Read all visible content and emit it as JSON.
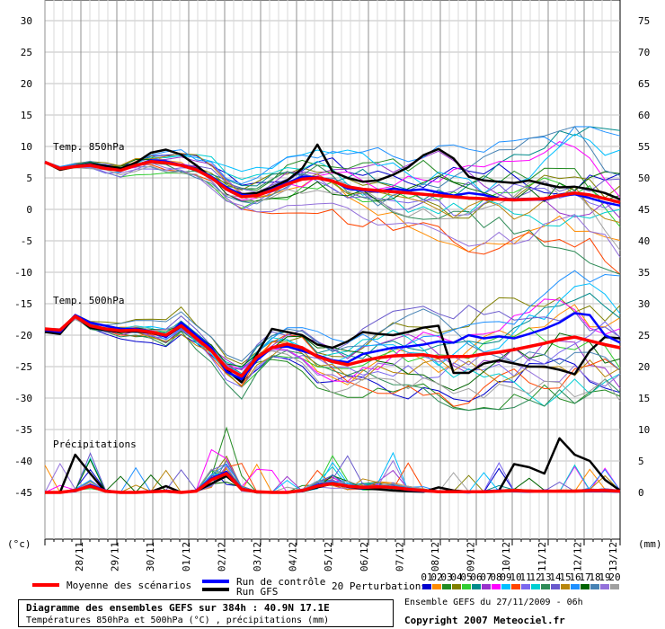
{
  "chart_data": {
    "type": "line",
    "left_axis_ticks": [
      "30",
      "25",
      "20",
      "15",
      "10",
      "5",
      "0",
      "-5",
      "-10",
      "-15",
      "-20",
      "-25",
      "-30",
      "-35",
      "-40",
      "-45"
    ],
    "right_axis_ticks": [
      "75",
      "70",
      "65",
      "60",
      "55",
      "50",
      "45",
      "40",
      "35",
      "30",
      "25",
      "20",
      "15",
      "10",
      "5",
      "0"
    ],
    "left_unit": "(°c)",
    "right_unit": "(mm)",
    "x_labels": [
      "28/11",
      "29/11",
      "30/11",
      "01/12",
      "02/12",
      "03/12",
      "04/12",
      "05/12",
      "06/12",
      "07/12",
      "08/12",
      "09/12",
      "10/12",
      "11/12",
      "12/12",
      "13/12"
    ],
    "panels": [
      {
        "label": "Temp. 850hPa",
        "mean": [
          7.5,
          6.5,
          6.8,
          7.0,
          6.5,
          6.2,
          7.0,
          7.6,
          7.4,
          7.0,
          6.3,
          5.0,
          3.2,
          2.0,
          2.2,
          3.0,
          4.0,
          4.8,
          5.0,
          4.5,
          3.6,
          3.2,
          3.0,
          2.8,
          2.6,
          2.4,
          2.2,
          2.0,
          1.8,
          1.7,
          1.6,
          1.5,
          1.6,
          1.7,
          2.2,
          2.6,
          2.3,
          1.7,
          1.1
        ],
        "control": [
          7.5,
          6.5,
          6.9,
          7.1,
          6.6,
          6.2,
          7.0,
          7.8,
          7.6,
          7.1,
          6.4,
          5.2,
          3.5,
          2.3,
          2.2,
          3.2,
          4.2,
          5.2,
          5.1,
          4.6,
          3.3,
          3.0,
          2.8,
          3.3,
          3.0,
          3.2,
          2.7,
          2.2,
          2.6,
          2.3,
          1.7,
          1.6,
          1.7,
          1.5,
          2.1,
          2.4,
          1.8,
          1.1,
          0.6
        ],
        "gfs": [
          7.5,
          6.3,
          6.8,
          7.2,
          6.9,
          6.5,
          7.4,
          9.0,
          9.5,
          8.7,
          7.0,
          5.0,
          3.4,
          2.4,
          2.6,
          3.5,
          4.6,
          6.5,
          10.3,
          6.0,
          5.0,
          4.4,
          4.6,
          5.5,
          6.7,
          8.6,
          9.6,
          8.1,
          5.2,
          4.6,
          4.4,
          4.2,
          4.6,
          4.0,
          3.5,
          3.6,
          3.2,
          2.6,
          1.6
        ]
      },
      {
        "label": "Temp. 500hPa",
        "mean": [
          -19.0,
          -19.2,
          -17.0,
          -18.5,
          -19.0,
          -19.3,
          -19.2,
          -19.5,
          -20.0,
          -18.5,
          -20.5,
          -22.5,
          -25.2,
          -26.5,
          -23.5,
          -22.0,
          -21.4,
          -22.0,
          -23.4,
          -24.2,
          -24.7,
          -24.1,
          -23.6,
          -23.3,
          -23.2,
          -23.1,
          -23.5,
          -23.4,
          -23.4,
          -23.0,
          -22.7,
          -22.3,
          -21.8,
          -21.3,
          -20.7,
          -20.3,
          -20.9,
          -21.5,
          -22.0
        ],
        "control": [
          -19.2,
          -19.5,
          -16.8,
          -18.0,
          -18.5,
          -19.0,
          -19.0,
          -19.4,
          -20.3,
          -18.0,
          -20.0,
          -22.0,
          -25.8,
          -27.0,
          -24.0,
          -22.0,
          -21.8,
          -22.5,
          -23.2,
          -24.0,
          -24.3,
          -23.0,
          -22.5,
          -22.0,
          -21.8,
          -21.5,
          -21.0,
          -21.2,
          -20.0,
          -20.5,
          -20.2,
          -20.5,
          -19.8,
          -19.0,
          -18.0,
          -16.5,
          -16.8,
          -20.0,
          -21.2
        ],
        "gfs": [
          -19.5,
          -19.8,
          -17.0,
          -18.8,
          -19.2,
          -19.5,
          -19.4,
          -19.6,
          -20.2,
          -18.6,
          -20.5,
          -22.2,
          -25.5,
          -27.5,
          -23.0,
          -19.0,
          -19.5,
          -20.0,
          -21.5,
          -22.0,
          -21.0,
          -19.5,
          -19.8,
          -20.0,
          -19.5,
          -18.8,
          -18.5,
          -26.0,
          -26.0,
          -24.5,
          -24.0,
          -24.5,
          -25.0,
          -25.0,
          -25.5,
          -26.2,
          -22.5,
          -20.3,
          -20.5
        ]
      },
      {
        "label": "Précipitations",
        "mean": [
          0,
          0,
          0.3,
          1.0,
          0.2,
          0,
          0,
          0.1,
          0.2,
          0,
          0.2,
          2.0,
          3.0,
          0.5,
          0.1,
          0,
          0,
          0.3,
          1.0,
          1.4,
          1.0,
          0.8,
          0.9,
          0.8,
          0.5,
          0.3,
          0.1,
          0.1,
          0.1,
          0.1,
          0.2,
          0.3,
          0.2,
          0.2,
          0.2,
          0.2,
          0.3,
          0.3,
          0.2
        ],
        "control": [
          0,
          0,
          0.2,
          1.2,
          0.3,
          0,
          0,
          0.2,
          0.1,
          0,
          0.3,
          2.2,
          3.3,
          0.6,
          0.1,
          0,
          0,
          0.2,
          1.2,
          1.5,
          1.0,
          0.7,
          0.9,
          0.8,
          0.4,
          0.2,
          0.1,
          0.1,
          0.0,
          0.2,
          0.3,
          0.2,
          0.1,
          0.3,
          0.2,
          0.2,
          0.2,
          0.2,
          0.1
        ],
        "gfs": [
          0,
          0,
          6.0,
          3.0,
          0.1,
          0,
          0,
          0.1,
          1.0,
          0,
          0.2,
          1.4,
          2.6,
          0.6,
          0,
          0,
          0,
          0.2,
          0.8,
          1.4,
          0.9,
          0.6,
          0.5,
          0.3,
          0.2,
          0.1,
          0.8,
          0.3,
          0.1,
          0.1,
          0.3,
          4.5,
          4.0,
          3.0,
          8.6,
          6.0,
          5.0,
          2.0,
          0.3
        ]
      }
    ],
    "legend": {
      "mean": "Moyenne des scénarios",
      "control": "Run de contrôle",
      "gfs": "Run GFS",
      "perturbations": "20 Perturbations",
      "perturbation_ids": [
        "01",
        "02",
        "03",
        "04",
        "05",
        "06",
        "07",
        "08",
        "09",
        "10",
        "11",
        "12",
        "13",
        "14",
        "15",
        "16",
        "17",
        "18",
        "19",
        "20"
      ]
    }
  },
  "colors": {
    "mean": "#ff0000",
    "control": "#0000ff",
    "gfs": "#000000",
    "perturbations": [
      "#0000cd",
      "#ff8c00",
      "#228b22",
      "#808000",
      "#32cd32",
      "#008b8b",
      "#9932cc",
      "#ff00ff",
      "#00bfff",
      "#ff4500",
      "#7b68ee",
      "#00ced1",
      "#2e8b57",
      "#6a5acd",
      "#b8860b",
      "#1e90ff",
      "#006400",
      "#4682b4",
      "#9370db",
      "#a0a0a0"
    ]
  },
  "info": {
    "title": "Diagramme des ensembles GEFS sur 384h : 40.9N 17.1E",
    "subtitle": "Températures 850hPa et 500hPa (°C) , précipitations (mm)",
    "ensemble": "Ensemble GEFS du 27/11/2009 - 06h",
    "copyright": "Copyright 2007 Meteociel.fr"
  }
}
